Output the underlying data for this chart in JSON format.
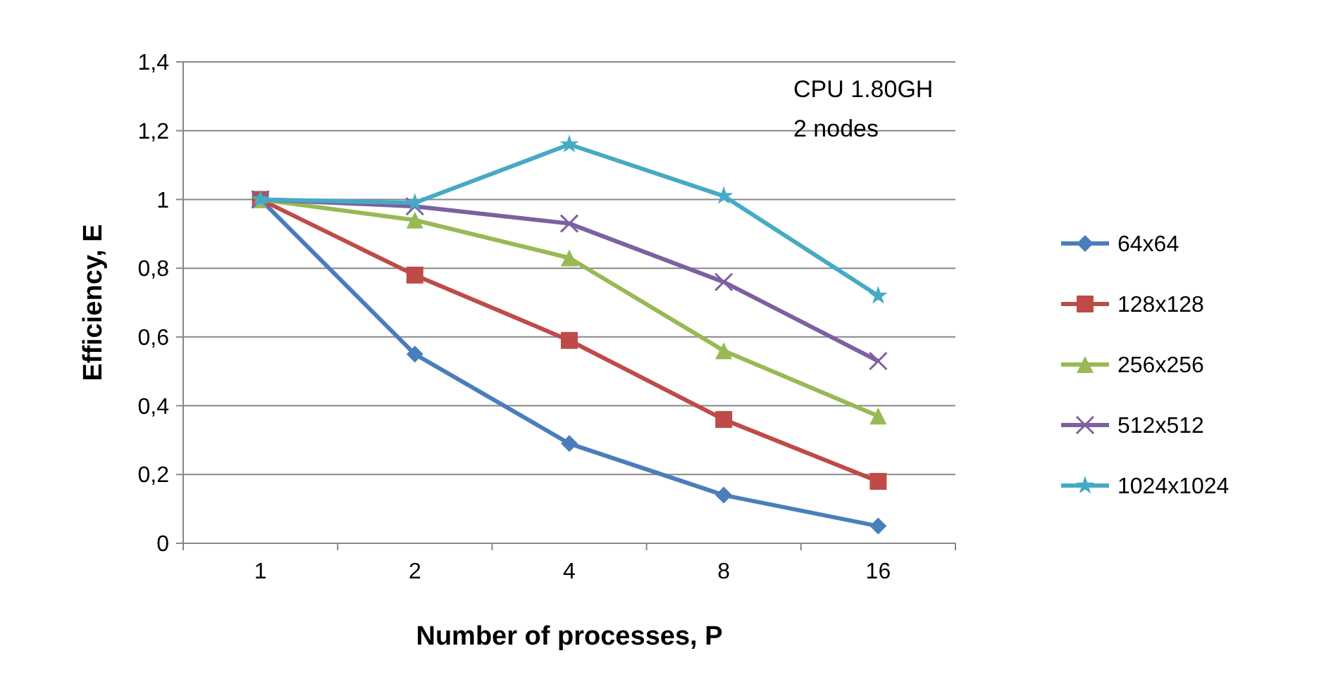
{
  "chart_data": {
    "type": "line",
    "xlabel": "Number of processes, P",
    "ylabel": "Efficiency, E",
    "categories": [
      "1",
      "2",
      "4",
      "8",
      "16"
    ],
    "ylim": [
      0,
      1.4
    ],
    "yticks": [
      0,
      {
        "value": 0.2,
        "label": "0,2"
      },
      {
        "value": 0.4,
        "label": "0,4"
      },
      {
        "value": 0.6,
        "label": "0,6"
      },
      {
        "value": 0.8,
        "label": "0,8"
      },
      1,
      {
        "value": 1.2,
        "label": "1,2"
      },
      {
        "value": 1.4,
        "label": "1,4"
      }
    ],
    "grid": "y",
    "legend": "right",
    "annotations": [
      "CPU 1.80GH",
      "2 nodes"
    ],
    "series": [
      {
        "name": "64x64",
        "color": "#4a7ebb",
        "marker": "diamond",
        "values": [
          1,
          0.55,
          0.29,
          0.14,
          0.05
        ]
      },
      {
        "name": "128x128",
        "color": "#be4b48",
        "marker": "square",
        "values": [
          1,
          0.78,
          0.59,
          0.36,
          0.18
        ]
      },
      {
        "name": "256x256",
        "color": "#98b954",
        "marker": "triangle",
        "values": [
          1,
          0.94,
          0.83,
          0.56,
          0.37
        ]
      },
      {
        "name": "512x512",
        "color": "#7d60a0",
        "marker": "cross",
        "values": [
          1,
          0.98,
          0.93,
          0.76,
          0.53
        ]
      },
      {
        "name": "1024x1024",
        "color": "#46aac5",
        "marker": "star",
        "values": [
          1,
          0.99,
          1.16,
          1.01,
          0.72
        ]
      }
    ]
  }
}
